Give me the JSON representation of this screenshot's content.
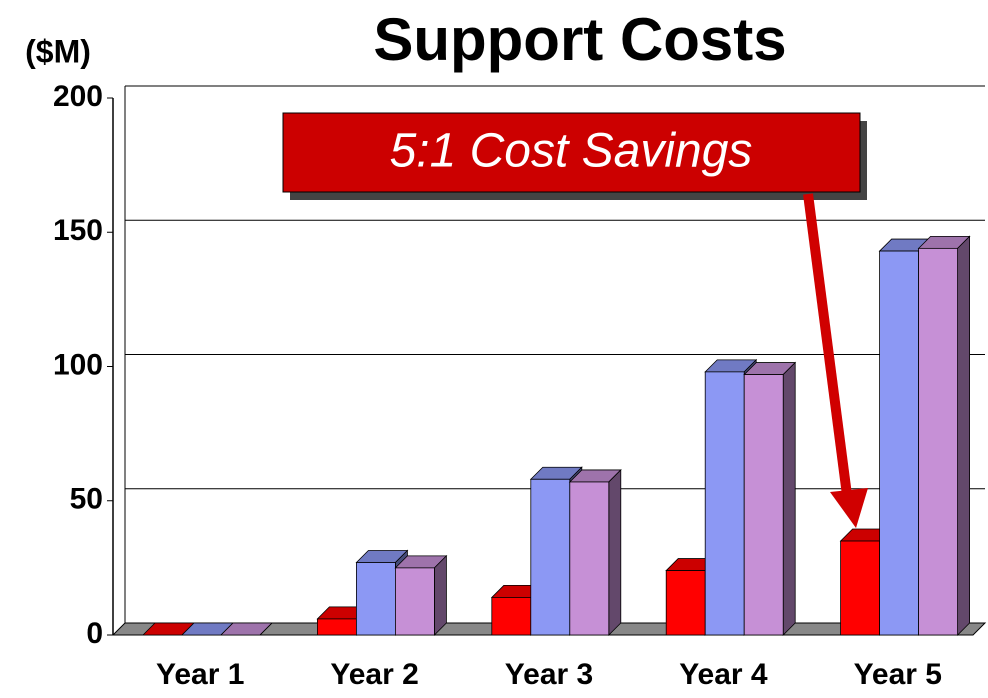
{
  "chart_data": {
    "type": "bar3d",
    "title": "Support Costs",
    "y_axis_label": "($M)",
    "categories": [
      "Year 1",
      "Year 2",
      "Year 3",
      "Year 4",
      "Year 5"
    ],
    "series": [
      {
        "color": "#ff0000",
        "values": [
          0,
          6,
          14,
          24,
          35
        ]
      },
      {
        "color": "#8c98f4",
        "values": [
          0,
          27,
          58,
          98,
          143
        ]
      },
      {
        "color": "#c690d6",
        "values": [
          0,
          25,
          57,
          97,
          144
        ]
      }
    ],
    "ylim": [
      0,
      200
    ],
    "yticks": [
      0,
      50,
      100,
      150,
      200
    ],
    "grid": true,
    "annotation": "5:1 Cost Savings"
  }
}
